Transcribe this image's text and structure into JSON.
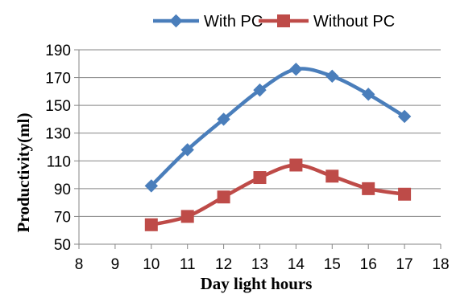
{
  "chart_data": {
    "type": "line",
    "x": [
      10,
      11,
      12,
      13,
      14,
      15,
      16,
      17
    ],
    "series": [
      {
        "name": "With PC",
        "values": [
          92,
          118,
          140,
          161,
          176,
          171,
          158,
          142
        ],
        "color": "#4a7ebb",
        "marker": "diamond"
      },
      {
        "name": "Without PC",
        "values": [
          64,
          70,
          84,
          98,
          107,
          99,
          90,
          86
        ],
        "color": "#be4b48",
        "marker": "square"
      }
    ],
    "title": "",
    "xlabel": "Day light hours",
    "ylabel": "Productivity(ml)",
    "xlim": [
      8,
      18
    ],
    "ylim": [
      50,
      190
    ],
    "xticks": [
      8,
      9,
      10,
      11,
      12,
      13,
      14,
      15,
      16,
      17,
      18
    ],
    "yticks": [
      50,
      70,
      90,
      110,
      130,
      150,
      170,
      190
    ],
    "grid": "horizontal",
    "legend": "top"
  }
}
